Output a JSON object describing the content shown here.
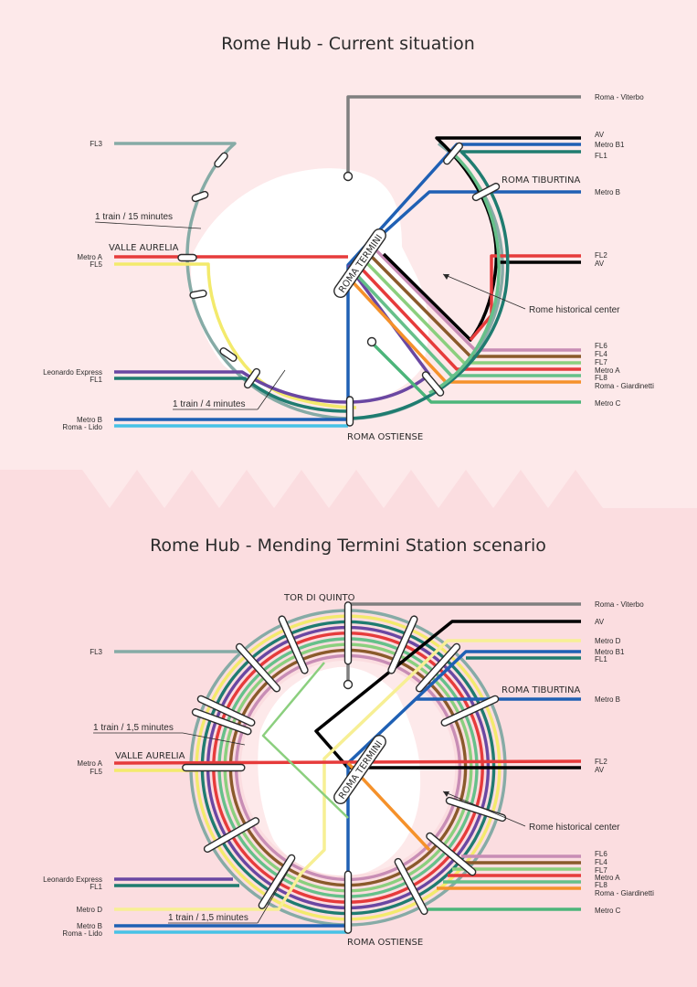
{
  "colors": {
    "background_top": "#fde9ea",
    "background_bottom": "#fbdde0",
    "center": "#ffffff",
    "fl3": "#86aba6",
    "viterbo": "#7f7f7f",
    "av": "#000000",
    "metro_b": "#1f60b4",
    "metro_b1": "#1f60b4",
    "fl1": "#1f7c70",
    "metro_a": "#e63b3b",
    "fl5": "#f3ea6c",
    "fl2": "#e63b3b",
    "fl6": "#c88db5",
    "fl4": "#8a5a2b",
    "fl7": "#8bcf7e",
    "fl8": "#66c08a",
    "giardinetti": "#f5912a",
    "metro_c": "#4cb57a",
    "leonardo": "#6a47a2",
    "lido": "#47c2e6",
    "metro_d": "#f7ef94",
    "ink": "#2b2b2b"
  },
  "top": {
    "title": "Rome Hub - Current situation",
    "stations": {
      "valle_aurelia": "VALLE AURELIA",
      "roma_termini": "ROMA TERMINI",
      "roma_tiburtina": "ROMA TIBURTINA",
      "roma_ostiense": "ROMA OSTIENSE"
    },
    "notes": {
      "freq_15": "1 train / 15 minutes",
      "freq_4": "1 train / 4 minutes",
      "historical": "Rome historical center"
    },
    "left_labels": {
      "fl3": "FL3",
      "metro_a": "Metro A",
      "fl5": "FL5",
      "leonardo": "Leonardo Express",
      "fl1": "FL1",
      "metro_b": "Metro B",
      "lido": "Roma - Lido"
    },
    "right_labels": {
      "viterbo": "Roma - Viterbo",
      "av": "AV",
      "metro_b1": "Metro B1",
      "fl1": "FL1",
      "metro_b": "Metro B",
      "fl2": "FL2",
      "av2": "AV",
      "fl6": "FL6",
      "fl4": "FL4",
      "fl7": "FL7",
      "metro_a": "Metro A",
      "fl8": "FL8",
      "giardinetti": "Roma - Giardinetti",
      "metro_c": "Metro C"
    }
  },
  "bottom": {
    "title": "Rome Hub - Mending Termini Station scenario",
    "stations": {
      "tor_di_quinto": "TOR DI QUINTO",
      "valle_aurelia": "VALLE AURELIA",
      "roma_termini": "ROMA TERMINI",
      "roma_tiburtina": "ROMA TIBURTINA",
      "roma_ostiense": "ROMA OSTIENSE"
    },
    "notes": {
      "freq_a": "1 train / 1,5 minutes",
      "freq_b": "1 train / 1,5 minutes",
      "historical": "Rome historical center"
    },
    "left_labels": {
      "fl3": "FL3",
      "metro_a": "Metro A",
      "fl5": "FL5",
      "leonardo": "Leonardo Express",
      "fl1": "FL1",
      "metro_d": "Metro D",
      "metro_b": "Metro B",
      "lido": "Roma - Lido"
    },
    "right_labels": {
      "viterbo": "Roma - Viterbo",
      "av": "AV",
      "metro_d": "Metro D",
      "metro_b1": "Metro B1",
      "fl1": "FL1",
      "metro_b": "Metro B",
      "fl2": "FL2",
      "av2": "AV",
      "fl6": "FL6",
      "fl4": "FL4",
      "fl7": "FL7",
      "metro_a": "Metro A",
      "fl8": "FL8",
      "giardinetti": "Roma - Giardinetti",
      "metro_c": "Metro C"
    }
  }
}
